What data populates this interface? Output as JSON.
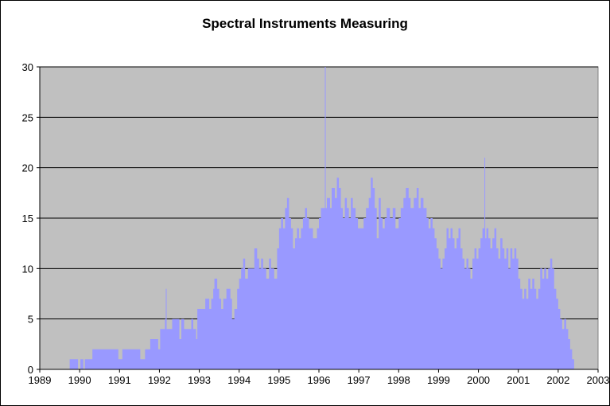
{
  "chart_data": {
    "type": "area",
    "title": "Spectral Instruments Measuring",
    "xlabel": "",
    "ylabel": "",
    "xlim": [
      1989,
      2003
    ],
    "ylim": [
      0,
      30
    ],
    "x_ticks": [
      1989,
      1990,
      1991,
      1992,
      1993,
      1994,
      1995,
      1996,
      1997,
      1998,
      1999,
      2000,
      2001,
      2002,
      2003
    ],
    "y_ticks": [
      0,
      5,
      10,
      15,
      20,
      25,
      30
    ],
    "grid": "horizontal",
    "legend": "none",
    "colors": {
      "plot_background": "#c0c0c0",
      "fill": "#9999ff",
      "gridline": "#000000",
      "page_background": "#ffffff"
    },
    "series": [
      {
        "points": [
          [
            1989.72,
            0
          ],
          [
            1989.75,
            1
          ],
          [
            1989.95,
            1
          ],
          [
            1989.96,
            0
          ],
          [
            1990.0,
            0
          ],
          [
            1990.02,
            1
          ],
          [
            1990.08,
            1
          ],
          [
            1990.09,
            0
          ],
          [
            1990.12,
            0
          ],
          [
            1990.13,
            1
          ],
          [
            1990.3,
            1
          ],
          [
            1990.32,
            2
          ],
          [
            1990.95,
            2
          ],
          [
            1990.97,
            1
          ],
          [
            1991.05,
            1
          ],
          [
            1991.07,
            2
          ],
          [
            1991.5,
            2
          ],
          [
            1991.52,
            1
          ],
          [
            1991.62,
            1
          ],
          [
            1991.64,
            2
          ],
          [
            1991.75,
            2
          ],
          [
            1991.77,
            3
          ],
          [
            1991.95,
            3
          ],
          [
            1991.97,
            2
          ],
          [
            1992.0,
            2
          ],
          [
            1992.02,
            4
          ],
          [
            1992.12,
            4
          ],
          [
            1992.14,
            5
          ],
          [
            1992.16,
            8
          ],
          [
            1992.18,
            4
          ],
          [
            1992.3,
            4
          ],
          [
            1992.32,
            5
          ],
          [
            1992.45,
            5
          ],
          [
            1992.5,
            3
          ],
          [
            1992.55,
            5
          ],
          [
            1992.62,
            4
          ],
          [
            1992.75,
            4
          ],
          [
            1992.8,
            5
          ],
          [
            1992.85,
            4
          ],
          [
            1992.92,
            3
          ],
          [
            1992.95,
            6
          ],
          [
            1993.1,
            6
          ],
          [
            1993.15,
            7
          ],
          [
            1993.25,
            6
          ],
          [
            1993.3,
            7
          ],
          [
            1993.35,
            8
          ],
          [
            1993.38,
            9
          ],
          [
            1993.45,
            8
          ],
          [
            1993.5,
            7
          ],
          [
            1993.55,
            6
          ],
          [
            1993.6,
            7
          ],
          [
            1993.68,
            8
          ],
          [
            1993.78,
            7
          ],
          [
            1993.82,
            5
          ],
          [
            1993.88,
            6
          ],
          [
            1993.95,
            8
          ],
          [
            1994.0,
            9
          ],
          [
            1994.05,
            10
          ],
          [
            1994.1,
            11
          ],
          [
            1994.15,
            9
          ],
          [
            1994.22,
            10
          ],
          [
            1994.3,
            10
          ],
          [
            1994.38,
            12
          ],
          [
            1994.45,
            11
          ],
          [
            1994.5,
            10
          ],
          [
            1994.55,
            11
          ],
          [
            1994.6,
            10
          ],
          [
            1994.68,
            9
          ],
          [
            1994.75,
            11
          ],
          [
            1994.8,
            10
          ],
          [
            1994.88,
            9
          ],
          [
            1994.95,
            12
          ],
          [
            1995.0,
            14
          ],
          [
            1995.05,
            15
          ],
          [
            1995.1,
            14
          ],
          [
            1995.15,
            16
          ],
          [
            1995.2,
            17
          ],
          [
            1995.25,
            15
          ],
          [
            1995.3,
            14
          ],
          [
            1995.35,
            12
          ],
          [
            1995.4,
            13
          ],
          [
            1995.45,
            14
          ],
          [
            1995.5,
            13
          ],
          [
            1995.55,
            14
          ],
          [
            1995.6,
            15
          ],
          [
            1995.65,
            16
          ],
          [
            1995.7,
            15
          ],
          [
            1995.75,
            14
          ],
          [
            1995.85,
            13
          ],
          [
            1995.95,
            14
          ],
          [
            1996.0,
            15
          ],
          [
            1996.05,
            16
          ],
          [
            1996.12,
            16
          ],
          [
            1996.15,
            30
          ],
          [
            1996.17,
            16
          ],
          [
            1996.2,
            17
          ],
          [
            1996.28,
            16
          ],
          [
            1996.32,
            18
          ],
          [
            1996.4,
            17
          ],
          [
            1996.45,
            19
          ],
          [
            1996.5,
            18
          ],
          [
            1996.55,
            16
          ],
          [
            1996.6,
            15
          ],
          [
            1996.65,
            17
          ],
          [
            1996.7,
            16
          ],
          [
            1996.75,
            15
          ],
          [
            1996.8,
            17
          ],
          [
            1996.85,
            16
          ],
          [
            1996.92,
            15
          ],
          [
            1996.98,
            14
          ],
          [
            1997.05,
            14
          ],
          [
            1997.12,
            15
          ],
          [
            1997.18,
            16
          ],
          [
            1997.25,
            17
          ],
          [
            1997.3,
            19
          ],
          [
            1997.35,
            18
          ],
          [
            1997.4,
            16
          ],
          [
            1997.45,
            13
          ],
          [
            1997.5,
            17
          ],
          [
            1997.55,
            15
          ],
          [
            1997.6,
            14
          ],
          [
            1997.65,
            15
          ],
          [
            1997.7,
            16
          ],
          [
            1997.78,
            15
          ],
          [
            1997.85,
            16
          ],
          [
            1997.92,
            14
          ],
          [
            1998.0,
            15
          ],
          [
            1998.05,
            16
          ],
          [
            1998.12,
            17
          ],
          [
            1998.18,
            18
          ],
          [
            1998.25,
            17
          ],
          [
            1998.3,
            16
          ],
          [
            1998.38,
            17
          ],
          [
            1998.45,
            18
          ],
          [
            1998.5,
            16
          ],
          [
            1998.55,
            17
          ],
          [
            1998.62,
            16
          ],
          [
            1998.7,
            15
          ],
          [
            1998.75,
            14
          ],
          [
            1998.8,
            15
          ],
          [
            1998.85,
            14
          ],
          [
            1998.9,
            13
          ],
          [
            1998.95,
            12
          ],
          [
            1999.0,
            11
          ],
          [
            1999.05,
            10
          ],
          [
            1999.1,
            11
          ],
          [
            1999.15,
            12
          ],
          [
            1999.2,
            14
          ],
          [
            1999.25,
            13
          ],
          [
            1999.3,
            14
          ],
          [
            1999.35,
            13
          ],
          [
            1999.4,
            12
          ],
          [
            1999.45,
            13
          ],
          [
            1999.5,
            14
          ],
          [
            1999.55,
            12
          ],
          [
            1999.6,
            11
          ],
          [
            1999.65,
            10
          ],
          [
            1999.7,
            11
          ],
          [
            1999.75,
            10
          ],
          [
            1999.8,
            9
          ],
          [
            1999.85,
            11
          ],
          [
            1999.9,
            12
          ],
          [
            1999.95,
            11
          ],
          [
            2000.0,
            12
          ],
          [
            2000.05,
            13
          ],
          [
            2000.1,
            14
          ],
          [
            2000.15,
            21
          ],
          [
            2000.17,
            13
          ],
          [
            2000.2,
            14
          ],
          [
            2000.25,
            13
          ],
          [
            2000.3,
            12
          ],
          [
            2000.35,
            13
          ],
          [
            2000.4,
            14
          ],
          [
            2000.45,
            12
          ],
          [
            2000.5,
            11
          ],
          [
            2000.55,
            13
          ],
          [
            2000.6,
            12
          ],
          [
            2000.65,
            11
          ],
          [
            2000.7,
            12
          ],
          [
            2000.75,
            10
          ],
          [
            2000.8,
            12
          ],
          [
            2000.85,
            11
          ],
          [
            2000.9,
            12
          ],
          [
            2000.95,
            11
          ],
          [
            2001.0,
            9
          ],
          [
            2001.05,
            8
          ],
          [
            2001.1,
            7
          ],
          [
            2001.15,
            8
          ],
          [
            2001.2,
            7
          ],
          [
            2001.25,
            9
          ],
          [
            2001.3,
            8
          ],
          [
            2001.35,
            9
          ],
          [
            2001.4,
            8
          ],
          [
            2001.45,
            7
          ],
          [
            2001.5,
            8
          ],
          [
            2001.55,
            10
          ],
          [
            2001.6,
            9
          ],
          [
            2001.65,
            10
          ],
          [
            2001.7,
            9
          ],
          [
            2001.75,
            10
          ],
          [
            2001.8,
            11
          ],
          [
            2001.85,
            10
          ],
          [
            2001.9,
            8
          ],
          [
            2001.95,
            7
          ],
          [
            2002.0,
            6
          ],
          [
            2002.05,
            5
          ],
          [
            2002.1,
            4
          ],
          [
            2002.15,
            5
          ],
          [
            2002.2,
            4
          ],
          [
            2002.25,
            3
          ],
          [
            2002.3,
            2
          ],
          [
            2002.35,
            1
          ],
          [
            2002.4,
            0
          ]
        ]
      }
    ]
  }
}
